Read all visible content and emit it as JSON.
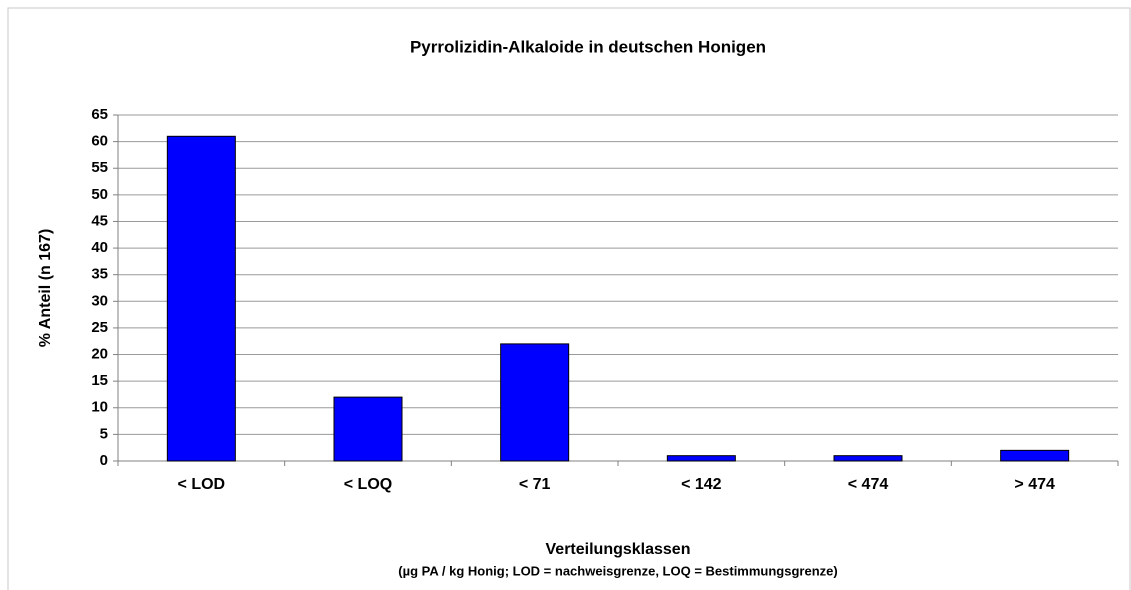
{
  "chart_data": {
    "type": "bar",
    "title": "Pyrrolizidin-Alkaloide  in deutschen Honigen",
    "x_label": "Verteilungsklassen",
    "x_sublabel": "(µg PA / kg Honig; LOD = nachweisgrenze, LOQ = Bestimmungsgrenze)",
    "y_label": "% Anteil (n 167)",
    "categories": [
      "< LOD",
      "< LOQ",
      "< 71",
      "< 142",
      "< 474",
      "> 474"
    ],
    "values": [
      61,
      12,
      22,
      1,
      1,
      2
    ],
    "color": "#0000ff",
    "ylim": [
      0,
      65
    ],
    "yticks": [
      0,
      5,
      10,
      15,
      20,
      25,
      30,
      35,
      40,
      45,
      50,
      55,
      60,
      65
    ],
    "grid": true
  }
}
